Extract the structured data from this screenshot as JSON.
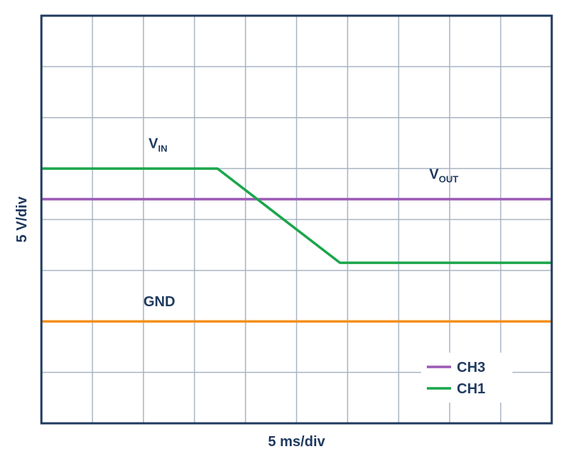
{
  "chart_data": {
    "type": "line",
    "title": "",
    "xlabel": "5 ms/div",
    "ylabel": "5 V/div",
    "x_divisions": 10,
    "y_divisions": 8,
    "xlim": [
      0,
      10
    ],
    "ylim": [
      0,
      8
    ],
    "grid": true,
    "legend_position": "bottom-right",
    "series": [
      {
        "name": "CH1",
        "color": "#1aa64a",
        "x": [
          0,
          3.45,
          5.85,
          10
        ],
        "y": [
          5.0,
          5.0,
          3.15,
          3.15
        ]
      },
      {
        "name": "CH3",
        "color": "#9b59b6",
        "x": [
          0,
          10
        ],
        "y": [
          4.4,
          4.4
        ]
      },
      {
        "name": "",
        "color": "#f5901e",
        "x": [
          0,
          10
        ],
        "y": [
          2.0,
          2.0
        ]
      }
    ],
    "annotations": [
      {
        "id": "vin",
        "main": "V",
        "sub": "IN",
        "x": 2.1,
        "y": 5.4
      },
      {
        "id": "vout",
        "main": "V",
        "sub": "OUT",
        "x": 7.6,
        "y": 4.8
      },
      {
        "id": "gnd",
        "main": "GND",
        "sub": "",
        "x": 2.0,
        "y": 2.3
      }
    ],
    "legend": [
      {
        "label": "CH3",
        "color": "#9b59b6"
      },
      {
        "label": "CH1",
        "color": "#1aa64a"
      }
    ],
    "colors": {
      "frame": "#1f3a5f",
      "grid": "#a9b4c2",
      "text": "#1f3a5f"
    }
  }
}
